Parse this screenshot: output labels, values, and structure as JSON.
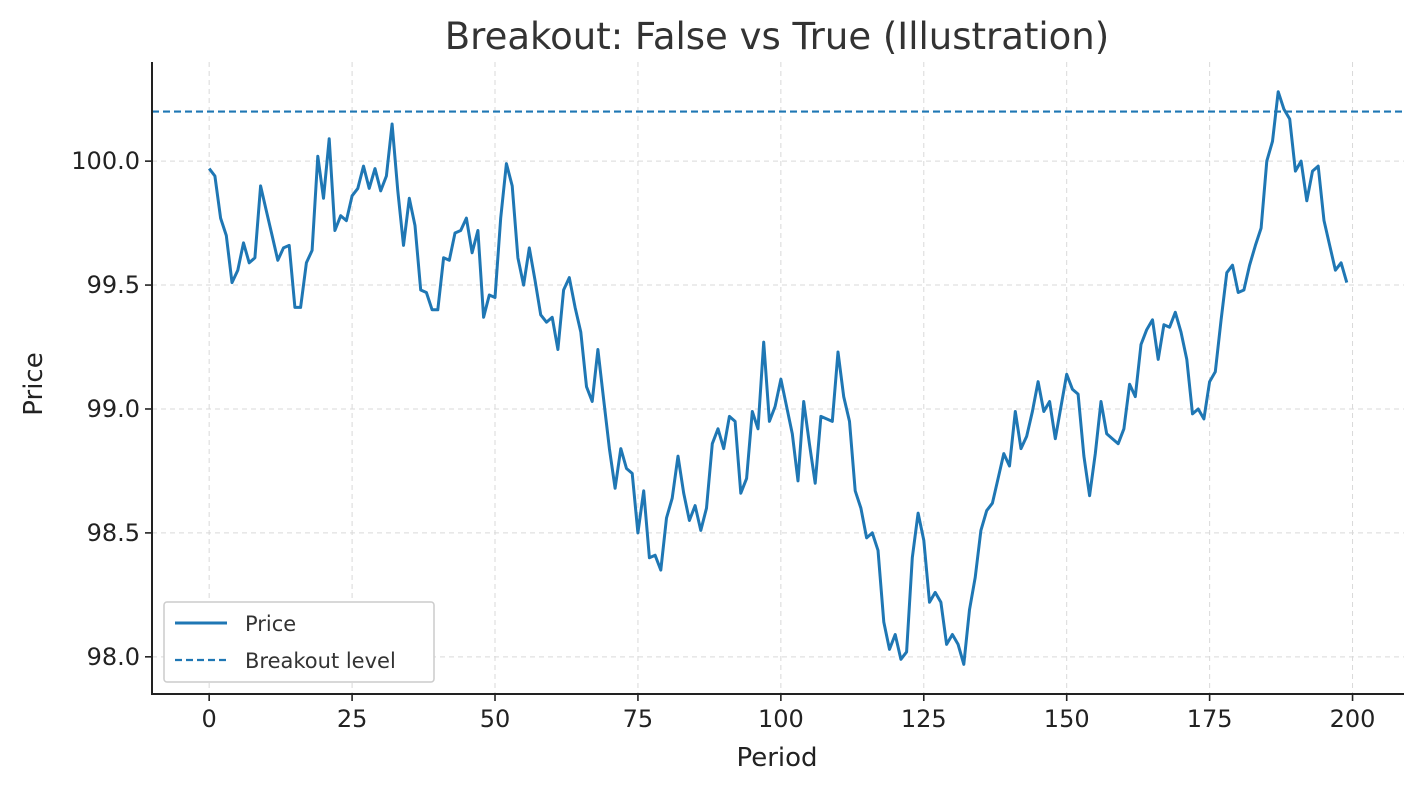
{
  "chart_data": {
    "type": "line",
    "title": "Breakout: False vs True (Illustration)",
    "xlabel": "Period",
    "ylabel": "Price",
    "xlim": [
      -10,
      209
    ],
    "ylim": [
      97.85,
      100.4
    ],
    "xticks": [
      0,
      25,
      50,
      75,
      100,
      125,
      150,
      175,
      200
    ],
    "yticks": [
      98.0,
      98.5,
      99.0,
      99.5,
      100.0
    ],
    "ytick_labels": [
      "98.0",
      "98.5",
      "99.0",
      "99.5",
      "100.0"
    ],
    "grid": true,
    "legend_position": "lower-left",
    "series": [
      {
        "name": "Price",
        "color": "#1f77b4",
        "style": "solid",
        "x": [
          0,
          1,
          2,
          3,
          4,
          5,
          6,
          7,
          8,
          9,
          10,
          11,
          12,
          13,
          14,
          15,
          16,
          17,
          18,
          19,
          20,
          21,
          22,
          23,
          24,
          25,
          26,
          27,
          28,
          29,
          30,
          31,
          32,
          33,
          34,
          35,
          36,
          37,
          38,
          39,
          40,
          41,
          42,
          43,
          44,
          45,
          46,
          47,
          48,
          49,
          50,
          51,
          52,
          53,
          54,
          55,
          56,
          57,
          58,
          59,
          60,
          61,
          62,
          63,
          64,
          65,
          66,
          67,
          68,
          69,
          70,
          71,
          72,
          73,
          74,
          75,
          76,
          77,
          78,
          79,
          80,
          81,
          82,
          83,
          84,
          85,
          86,
          87,
          88,
          89,
          90,
          91,
          92,
          93,
          94,
          95,
          96,
          97,
          98,
          99,
          100,
          101,
          102,
          103,
          104,
          105,
          106,
          107,
          108,
          109,
          110,
          111,
          112,
          113,
          114,
          115,
          116,
          117,
          118,
          119,
          120,
          121,
          122,
          123,
          124,
          125,
          126,
          127,
          128,
          129,
          130,
          131,
          132,
          133,
          134,
          135,
          136,
          137,
          138,
          139,
          140,
          141,
          142,
          143,
          144,
          145,
          146,
          147,
          148,
          149,
          150,
          151,
          152,
          153,
          154,
          155,
          156,
          157,
          158,
          159,
          160,
          161,
          162,
          163,
          164,
          165,
          166,
          167,
          168,
          169,
          170,
          171,
          172,
          173,
          174,
          175,
          176,
          177,
          178,
          179,
          180,
          181,
          182,
          183,
          184,
          185,
          186,
          187,
          188,
          189,
          190,
          191,
          192,
          193,
          194,
          195,
          196,
          197,
          198,
          199
        ],
        "values": [
          99.97,
          99.94,
          99.77,
          99.7,
          99.51,
          99.56,
          99.67,
          99.59,
          99.61,
          99.9,
          99.8,
          99.7,
          99.6,
          99.65,
          99.66,
          99.41,
          99.41,
          99.59,
          99.64,
          100.02,
          99.85,
          100.09,
          99.72,
          99.78,
          99.76,
          99.86,
          99.89,
          99.98,
          99.89,
          99.97,
          99.88,
          99.94,
          100.15,
          99.88,
          99.66,
          99.85,
          99.74,
          99.48,
          99.47,
          99.4,
          99.4,
          99.61,
          99.6,
          99.71,
          99.72,
          99.77,
          99.63,
          99.72,
          99.37,
          99.46,
          99.45,
          99.77,
          99.99,
          99.9,
          99.61,
          99.5,
          99.65,
          99.52,
          99.38,
          99.35,
          99.37,
          99.24,
          99.48,
          99.53,
          99.41,
          99.31,
          99.09,
          99.03,
          99.24,
          99.04,
          98.84,
          98.68,
          98.84,
          98.76,
          98.74,
          98.5,
          98.67,
          98.4,
          98.41,
          98.35,
          98.56,
          98.64,
          98.81,
          98.66,
          98.55,
          98.61,
          98.51,
          98.6,
          98.86,
          98.92,
          98.84,
          98.97,
          98.95,
          98.66,
          98.72,
          98.99,
          98.92,
          99.27,
          98.95,
          99.01,
          99.12,
          99.01,
          98.9,
          98.71,
          99.03,
          98.86,
          98.7,
          98.97,
          98.96,
          98.95,
          99.23,
          99.05,
          98.95,
          98.67,
          98.6,
          98.48,
          98.5,
          98.43,
          98.14,
          98.03,
          98.09,
          97.99,
          98.02,
          98.4,
          98.58,
          98.47,
          98.22,
          98.26,
          98.22,
          98.05,
          98.09,
          98.05,
          97.97,
          98.19,
          98.32,
          98.51,
          98.59,
          98.62,
          98.72,
          98.82,
          98.77,
          98.99,
          98.84,
          98.89,
          98.99,
          99.11,
          98.99,
          99.03,
          98.88,
          99.01,
          99.14,
          99.08,
          99.06,
          98.81,
          98.65,
          98.82,
          99.03,
          98.9,
          98.88,
          98.86,
          98.92,
          99.1,
          99.05,
          99.26,
          99.32,
          99.36,
          99.2,
          99.34,
          99.33,
          99.39,
          99.31,
          99.2,
          98.98,
          99.0,
          98.96,
          99.11,
          99.15,
          99.36,
          99.55,
          99.58,
          99.47,
          99.48,
          99.58,
          99.66,
          99.73,
          100.0,
          100.08,
          100.28,
          100.21,
          100.17,
          99.96,
          100.0,
          99.84,
          99.96,
          99.98,
          99.76,
          99.66,
          99.56,
          99.59,
          99.51
        ]
      },
      {
        "name": "Breakout level",
        "color": "#1f77b4",
        "style": "dashed",
        "y": 100.2
      }
    ]
  }
}
